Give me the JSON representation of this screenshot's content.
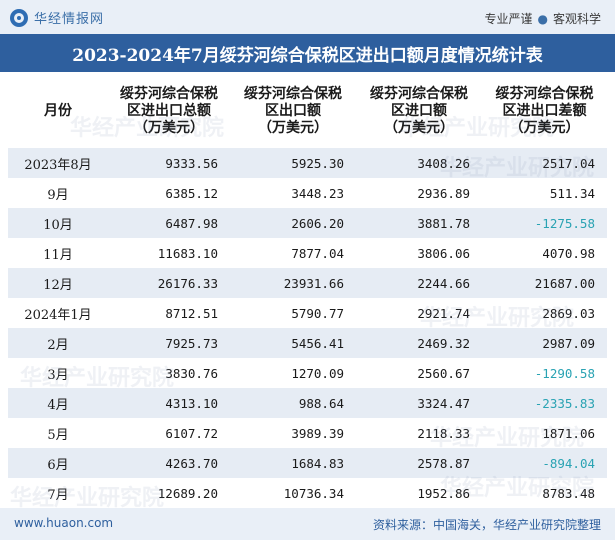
{
  "brand": {
    "name": "华经情报网"
  },
  "slogan": {
    "left": "专业严谨",
    "right": "客观科学"
  },
  "title": "2023-2024年7月绥芬河综合保税区进出口额月度情况统计表",
  "headers": [
    {
      "lines": [
        "月份"
      ]
    },
    {
      "lines": [
        "绥芬河综合保税",
        "区进出口总额",
        "（万美元）"
      ]
    },
    {
      "lines": [
        "绥芬河综合保税",
        "区出口额",
        "（万美元）"
      ]
    },
    {
      "lines": [
        "绥芬河综合保税",
        "区进口额",
        "（万美元）"
      ]
    },
    {
      "lines": [
        "绥芬河综合保税",
        "区进出口差额",
        "（万美元）"
      ]
    }
  ],
  "rows": [
    {
      "month": "2023年8月",
      "total": "9333.56",
      "export": "5925.30",
      "import": "3408.26",
      "balance": "2517.04"
    },
    {
      "month": "9月",
      "total": "6385.12",
      "export": "3448.23",
      "import": "2936.89",
      "balance": "511.34"
    },
    {
      "month": "10月",
      "total": "6487.98",
      "export": "2606.20",
      "import": "3881.78",
      "balance": "-1275.58"
    },
    {
      "month": "11月",
      "total": "11683.10",
      "export": "7877.04",
      "import": "3806.06",
      "balance": "4070.98"
    },
    {
      "month": "12月",
      "total": "26176.33",
      "export": "23931.66",
      "import": "2244.66",
      "balance": "21687.00"
    },
    {
      "month": "2024年1月",
      "total": "8712.51",
      "export": "5790.77",
      "import": "2921.74",
      "balance": "2869.03"
    },
    {
      "month": "2月",
      "total": "7925.73",
      "export": "5456.41",
      "import": "2469.32",
      "balance": "2987.09"
    },
    {
      "month": "3月",
      "total": "3830.76",
      "export": "1270.09",
      "import": "2560.67",
      "balance": "-1290.58"
    },
    {
      "month": "4月",
      "total": "4313.10",
      "export": "988.64",
      "import": "3324.47",
      "balance": "-2335.83"
    },
    {
      "month": "5月",
      "total": "6107.72",
      "export": "3989.39",
      "import": "2118.33",
      "balance": "1871.06"
    },
    {
      "month": "6月",
      "total": "4263.70",
      "export": "1684.83",
      "import": "2578.87",
      "balance": "-894.04"
    },
    {
      "month": "7月",
      "total": "12689.20",
      "export": "10736.34",
      "import": "1952.86",
      "balance": "8783.48"
    }
  ],
  "watermark": "华经产业研究院",
  "footer": {
    "site": "www.huaon.com",
    "source": "资料来源：中国海关，华经产业研究院整理"
  },
  "colors": {
    "title_bg": "#2e5f9e",
    "stripe": "#e6ecf4",
    "negative": "#2aa3b3"
  }
}
